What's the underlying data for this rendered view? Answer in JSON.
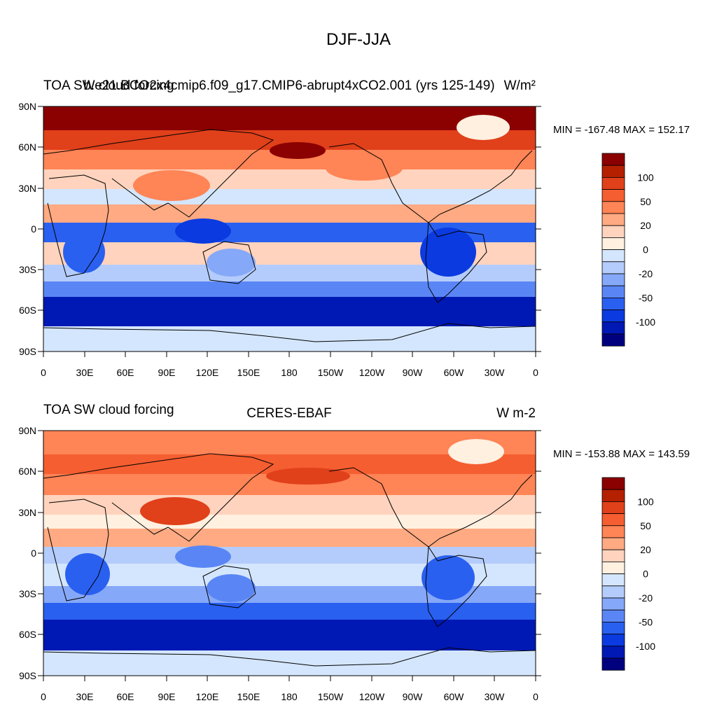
{
  "figure": {
    "title": "DJF-JJA",
    "panels": [
      {
        "left_title": "TOA SW cloud forcing",
        "center_title": "b.e21.BCO2x4cmip6.f09_g17.CMIP6-abrupt4xCO2.001 (yrs 125-149)",
        "units": "W/m²",
        "stats": "MIN = -167.48 MAX = 152.17"
      },
      {
        "left_title": "TOA SW cloud forcing",
        "center_title": "CERES-EBAF",
        "units": "W m-2",
        "stats": "MIN = -153.88 MAX = 143.59"
      }
    ],
    "lat_labels": [
      "90N",
      "60N",
      "30N",
      "0",
      "30S",
      "60S",
      "90S"
    ],
    "lon_labels": [
      "0",
      "30E",
      "60E",
      "90E",
      "120E",
      "150E",
      "180",
      "150W",
      "120W",
      "90W",
      "60W",
      "30W",
      "0"
    ],
    "colorbar": {
      "levels": [
        -150,
        -100,
        -75,
        -50,
        -40,
        -30,
        -20,
        -10,
        0,
        10,
        20,
        30,
        40,
        50,
        75,
        100,
        150
      ],
      "labels": [
        "100",
        "50",
        "20",
        "0",
        "-20",
        "-50",
        "-100"
      ],
      "colors": [
        "#00007f",
        "#0018b4",
        "#0a3ae0",
        "#2a60f0",
        "#5a86f5",
        "#86a8f8",
        "#b4ccfb",
        "#d4e6fd",
        "#fff0e0",
        "#ffd3bd",
        "#ffaa82",
        "#ff8456",
        "#f55e30",
        "#e0401a",
        "#b42000",
        "#8b0000"
      ]
    }
  }
}
